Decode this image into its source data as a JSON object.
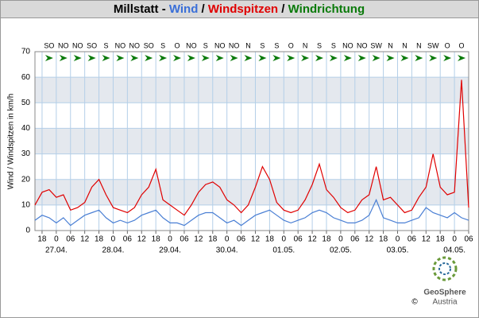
{
  "chart_data": {
    "type": "line",
    "title_parts": [
      {
        "text": "Millstatt - ",
        "color": "#000000"
      },
      {
        "text": "Wind",
        "color": "#3a6fd8"
      },
      {
        "text": " / ",
        "color": "#000000"
      },
      {
        "text": "Windspitzen",
        "color": "#e00000"
      },
      {
        "text": " / ",
        "color": "#000000"
      },
      {
        "text": "Windrichtung",
        "color": "#0a7a0a"
      }
    ],
    "y_label": "Wind / Windspitzen in km/h",
    "ylim": [
      0,
      70
    ],
    "yticks": [
      0,
      10,
      20,
      30,
      40,
      50,
      60,
      70
    ],
    "xlim": [
      "26.04. 15:00",
      "04.05. 06:00"
    ],
    "xticks": [
      {
        "value": "26.04. 18:00",
        "label": "18"
      },
      {
        "value": "27.04. 00:00",
        "label": "0"
      },
      {
        "value": "27.04. 06:00",
        "label": "06"
      },
      {
        "value": "27.04. 12:00",
        "label": "12"
      },
      {
        "value": "27.04. 18:00",
        "label": "18"
      },
      {
        "value": "28.04. 00:00",
        "label": "0"
      },
      {
        "value": "28.04. 06:00",
        "label": "06"
      },
      {
        "value": "28.04. 12:00",
        "label": "12"
      },
      {
        "value": "28.04. 18:00",
        "label": "18"
      },
      {
        "value": "29.04. 00:00",
        "label": "0"
      },
      {
        "value": "29.04. 06:00",
        "label": "06"
      },
      {
        "value": "29.04. 12:00",
        "label": "12"
      },
      {
        "value": "29.04. 18:00",
        "label": "18"
      },
      {
        "value": "30.04. 00:00",
        "label": "0"
      },
      {
        "value": "30.04. 06:00",
        "label": "06"
      },
      {
        "value": "30.04. 12:00",
        "label": "12"
      },
      {
        "value": "30.04. 18:00",
        "label": "18"
      },
      {
        "value": "01.05. 00:00",
        "label": "0"
      },
      {
        "value": "01.05. 06:00",
        "label": "06"
      },
      {
        "value": "01.05. 12:00",
        "label": "12"
      },
      {
        "value": "01.05. 18:00",
        "label": "18"
      },
      {
        "value": "02.05. 00:00",
        "label": "0"
      },
      {
        "value": "02.05. 06:00",
        "label": "06"
      },
      {
        "value": "02.05. 12:00",
        "label": "12"
      },
      {
        "value": "02.05. 18:00",
        "label": "18"
      },
      {
        "value": "03.05. 00:00",
        "label": "0"
      },
      {
        "value": "03.05. 06:00",
        "label": "06"
      },
      {
        "value": "03.05. 12:00",
        "label": "12"
      },
      {
        "value": "03.05. 18:00",
        "label": "18"
      },
      {
        "value": "04.05. 00:00",
        "label": "0"
      },
      {
        "value": "04.05. 06:00",
        "label": "06"
      }
    ],
    "date_labels": [
      {
        "value": "27.04. 00:00",
        "label": "27.04."
      },
      {
        "value": "28.04. 00:00",
        "label": "28.04."
      },
      {
        "value": "29.04. 00:00",
        "label": "29.04."
      },
      {
        "value": "30.04. 00:00",
        "label": "30.04."
      },
      {
        "value": "01.05. 00:00",
        "label": "01.05."
      },
      {
        "value": "02.05. 00:00",
        "label": "02.05."
      },
      {
        "value": "03.05. 00:00",
        "label": "03.05."
      },
      {
        "value": "04.05. 00:00",
        "label": "04.05."
      }
    ],
    "grid": true,
    "band_color": "#e4e8ee",
    "grid_color": "#b4cfe8",
    "direction_color": "#0a7a0a",
    "directions": {
      "x": [
        "26.04. 21:00",
        "27.04. 03:00",
        "27.04. 09:00",
        "27.04. 15:00",
        "27.04. 21:00",
        "28.04. 03:00",
        "28.04. 09:00",
        "28.04. 15:00",
        "28.04. 21:00",
        "29.04. 03:00",
        "29.04. 09:00",
        "29.04. 15:00",
        "29.04. 21:00",
        "30.04. 03:00",
        "30.04. 09:00",
        "30.04. 15:00",
        "30.04. 21:00",
        "01.05. 03:00",
        "01.05. 09:00",
        "01.05. 15:00",
        "01.05. 21:00",
        "02.05. 03:00",
        "02.05. 09:00",
        "02.05. 15:00",
        "02.05. 21:00",
        "03.05. 03:00",
        "03.05. 09:00",
        "03.05. 15:00",
        "03.05. 21:00",
        "04.05. 03:00"
      ],
      "labels": [
        "SO",
        "NO",
        "NO",
        "SO",
        "S",
        "NO",
        "NO",
        "SO",
        "S",
        "O",
        "NO",
        "S",
        "NO",
        "NO",
        "N",
        "S",
        "S",
        "O",
        "N",
        "S",
        "S",
        "NO",
        "NO",
        "SW",
        "N",
        "N",
        "N",
        "SW",
        "O",
        "O"
      ]
    },
    "x": [
      "26.04. 15:00",
      "26.04. 18:00",
      "26.04. 21:00",
      "27.04. 00:00",
      "27.04. 03:00",
      "27.04. 06:00",
      "27.04. 09:00",
      "27.04. 12:00",
      "27.04. 15:00",
      "27.04. 18:00",
      "27.04. 21:00",
      "28.04. 00:00",
      "28.04. 03:00",
      "28.04. 06:00",
      "28.04. 09:00",
      "28.04. 12:00",
      "28.04. 15:00",
      "28.04. 18:00",
      "28.04. 21:00",
      "29.04. 00:00",
      "29.04. 03:00",
      "29.04. 06:00",
      "29.04. 09:00",
      "29.04. 12:00",
      "29.04. 15:00",
      "29.04. 18:00",
      "29.04. 21:00",
      "30.04. 00:00",
      "30.04. 03:00",
      "30.04. 06:00",
      "30.04. 09:00",
      "30.04. 12:00",
      "30.04. 15:00",
      "30.04. 18:00",
      "30.04. 21:00",
      "01.05. 00:00",
      "01.05. 03:00",
      "01.05. 06:00",
      "01.05. 09:00",
      "01.05. 12:00",
      "01.05. 15:00",
      "01.05. 18:00",
      "01.05. 21:00",
      "02.05. 00:00",
      "02.05. 03:00",
      "02.05. 06:00",
      "02.05. 09:00",
      "02.05. 12:00",
      "02.05. 15:00",
      "02.05. 18:00",
      "02.05. 21:00",
      "03.05. 00:00",
      "03.05. 03:00",
      "03.05. 06:00",
      "03.05. 09:00",
      "03.05. 12:00",
      "03.05. 15:00",
      "03.05. 18:00",
      "03.05. 21:00",
      "04.05. 00:00",
      "04.05. 03:00",
      "04.05. 06:00"
    ],
    "series": [
      {
        "name": "Windspitzen",
        "color": "#e00000",
        "values": [
          10,
          15,
          16,
          13,
          14,
          8,
          9,
          11,
          17,
          20,
          14,
          9,
          8,
          7,
          9,
          14,
          17,
          24,
          12,
          10,
          8,
          6,
          10,
          15,
          18,
          19,
          17,
          12,
          10,
          7,
          10,
          17,
          25,
          20,
          11,
          8,
          7,
          8,
          12,
          18,
          26,
          16,
          13,
          9,
          7,
          8,
          12,
          14,
          25,
          12,
          13,
          10,
          7,
          8,
          13,
          17,
          30,
          17,
          14,
          15,
          59,
          9
        ]
      },
      {
        "name": "Wind",
        "color": "#4a7fd4",
        "values": [
          4,
          6,
          5,
          3,
          5,
          2,
          4,
          6,
          7,
          8,
          5,
          3,
          4,
          3,
          4,
          6,
          7,
          8,
          5,
          3,
          3,
          2,
          4,
          6,
          7,
          7,
          5,
          3,
          4,
          2,
          4,
          6,
          7,
          8,
          6,
          4,
          3,
          4,
          5,
          7,
          8,
          7,
          5,
          4,
          3,
          3,
          4,
          6,
          12,
          5,
          4,
          3,
          3,
          4,
          5,
          9,
          7,
          6,
          5,
          7,
          5,
          4
        ]
      }
    ],
    "source": {
      "name": "GeoSphere",
      "sub": "Austria",
      "copyright": "©"
    }
  }
}
